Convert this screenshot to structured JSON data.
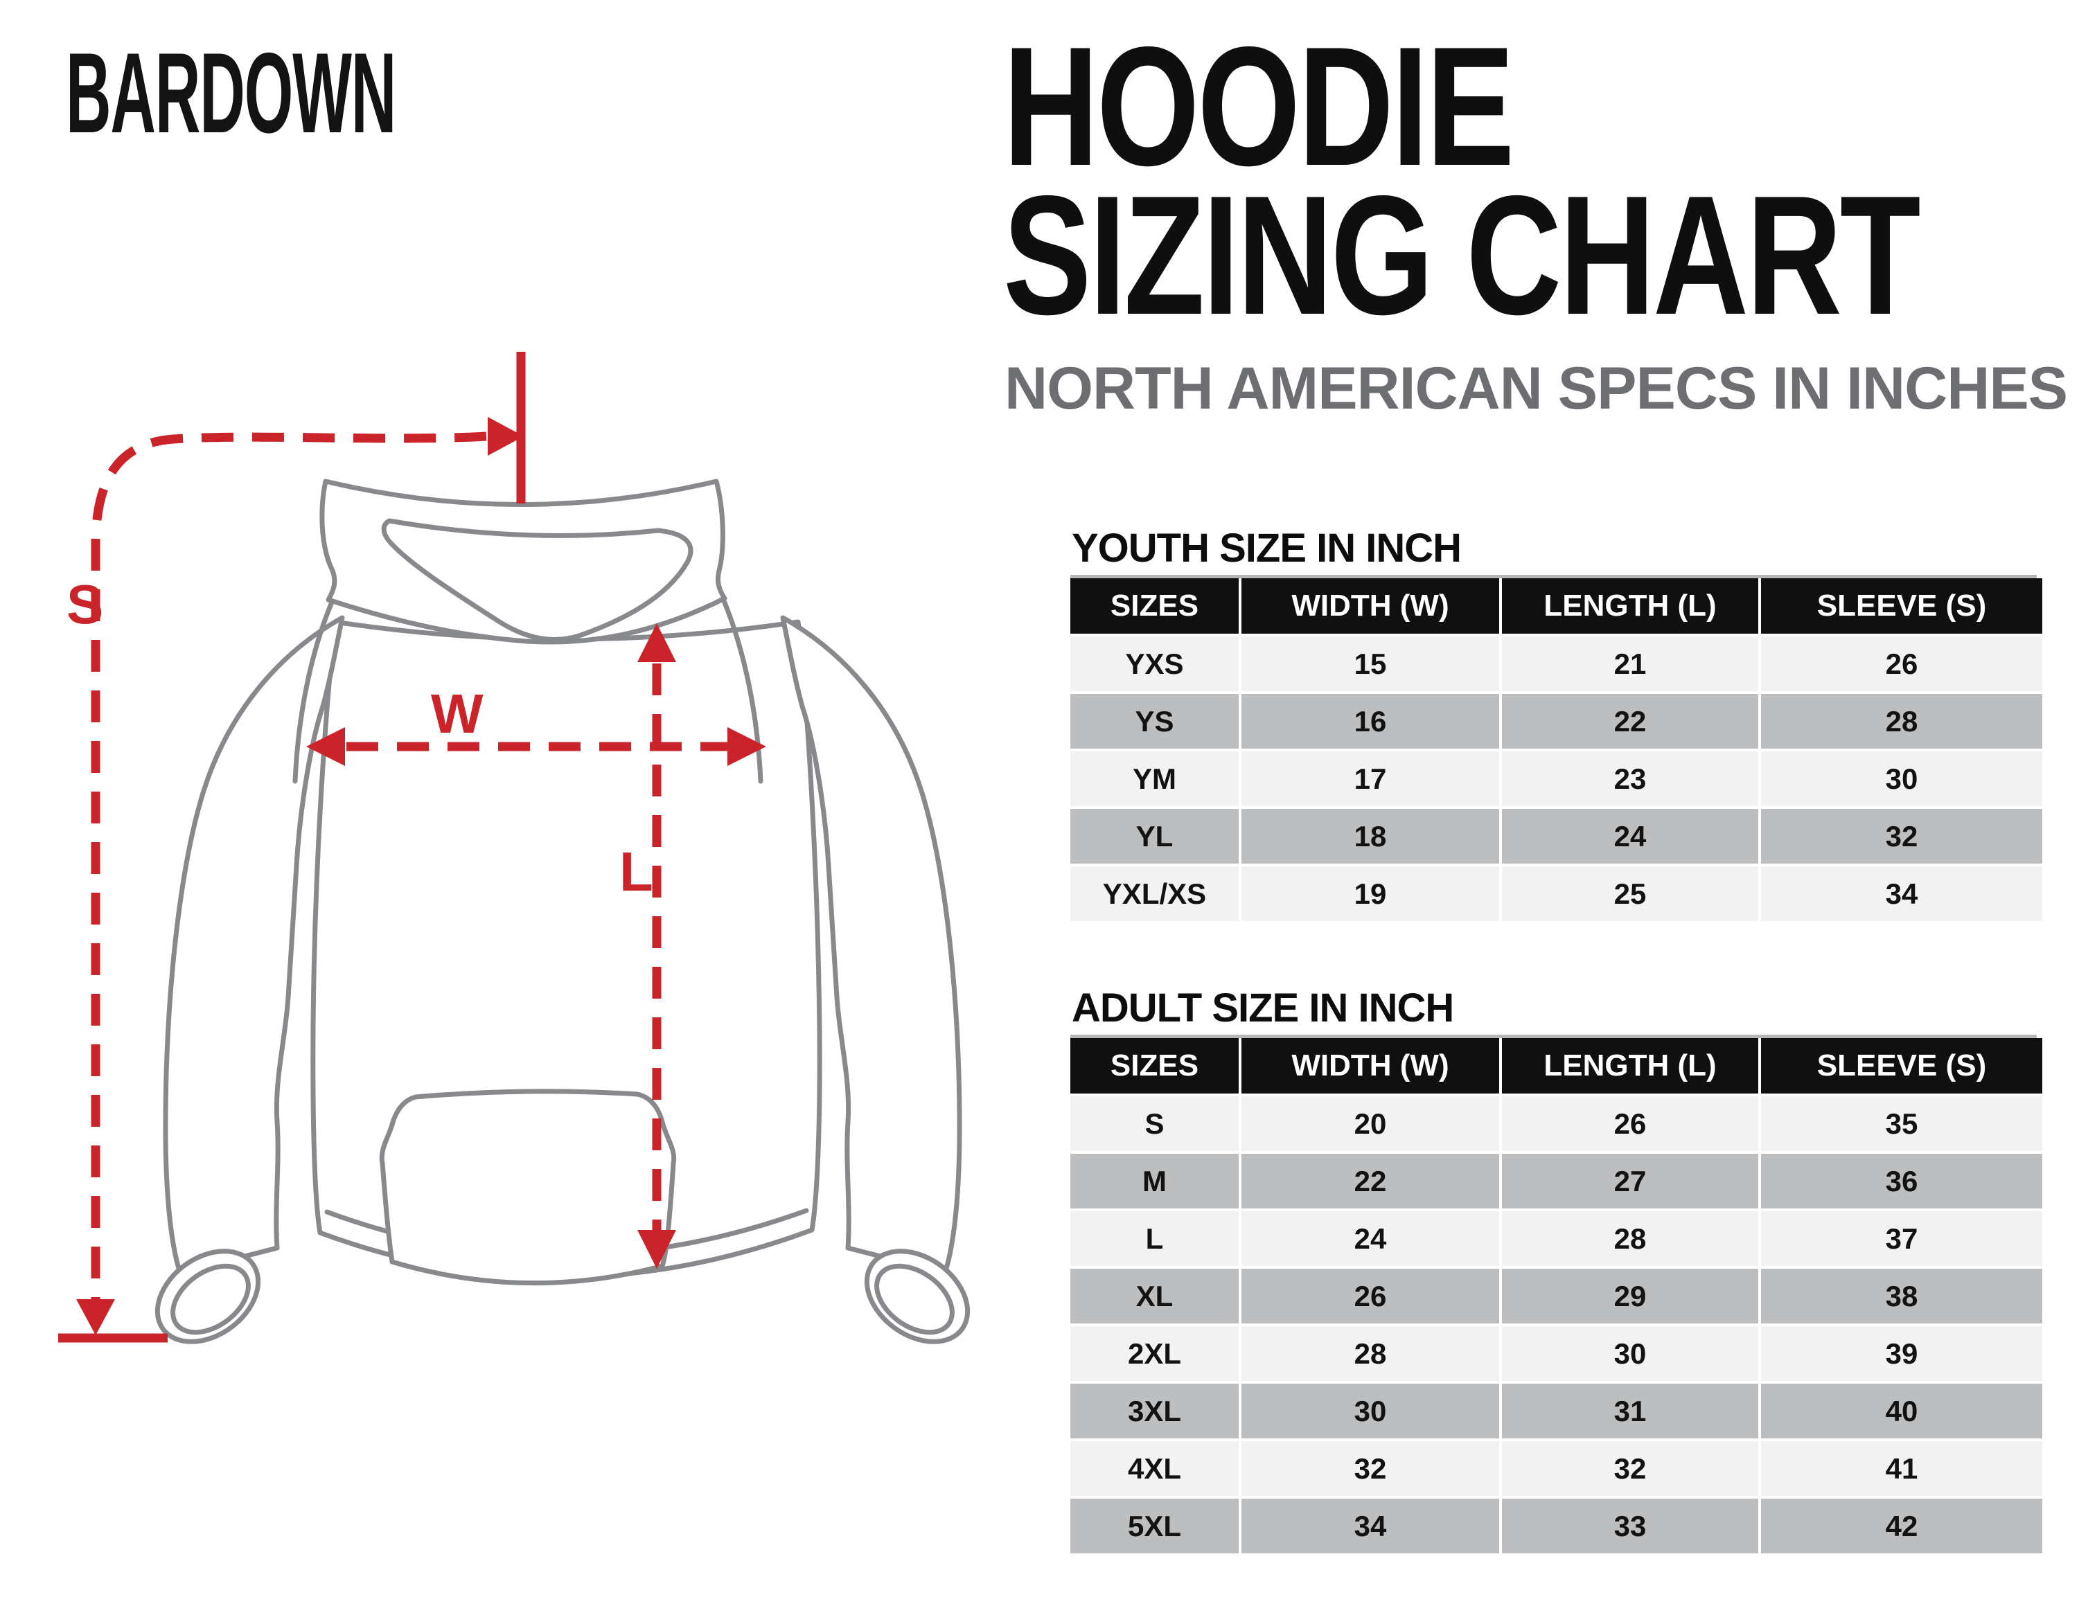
{
  "logo": "BARDOWN",
  "title_line1": "HOODIE",
  "title_line2": "SIZING CHART",
  "subtitle": "NORTH AMERICAN SPECS IN INCHES",
  "diagram": {
    "labels": {
      "sleeve": "S",
      "width": "W",
      "length": "L"
    }
  },
  "youth": {
    "title": "YOUTH SIZE IN INCH",
    "headers": [
      "SIZES",
      "WIDTH (W)",
      "LENGTH (L)",
      "SLEEVE (S)"
    ],
    "rows": [
      {
        "size": "YXS",
        "width": "15",
        "length": "21",
        "sleeve": "26"
      },
      {
        "size": "YS",
        "width": "16",
        "length": "22",
        "sleeve": "28"
      },
      {
        "size": "YM",
        "width": "17",
        "length": "23",
        "sleeve": "30"
      },
      {
        "size": "YL",
        "width": "18",
        "length": "24",
        "sleeve": "32"
      },
      {
        "size": "YXL/XS",
        "width": "19",
        "length": "25",
        "sleeve": "34"
      }
    ]
  },
  "adult": {
    "title": "ADULT SIZE IN INCH",
    "headers": [
      "SIZES",
      "WIDTH (W)",
      "LENGTH (L)",
      "SLEEVE (S)"
    ],
    "rows": [
      {
        "size": "S",
        "width": "20",
        "length": "26",
        "sleeve": "35"
      },
      {
        "size": "M",
        "width": "22",
        "length": "27",
        "sleeve": "36"
      },
      {
        "size": "L",
        "width": "24",
        "length": "28",
        "sleeve": "37"
      },
      {
        "size": "XL",
        "width": "26",
        "length": "29",
        "sleeve": "38"
      },
      {
        "size": "2XL",
        "width": "28",
        "length": "30",
        "sleeve": "39"
      },
      {
        "size": "3XL",
        "width": "30",
        "length": "31",
        "sleeve": "40"
      },
      {
        "size": "4XL",
        "width": "32",
        "length": "32",
        "sleeve": "41"
      },
      {
        "size": "5XL",
        "width": "34",
        "length": "33",
        "sleeve": "42"
      }
    ]
  },
  "colors": {
    "accent_red": "#cb232a",
    "outline_gray": "#87898c",
    "header_bg": "#101010",
    "row_light": "#f2f2f3",
    "row_dark": "#bdbebf",
    "subtitle_gray": "#6d6e71"
  }
}
